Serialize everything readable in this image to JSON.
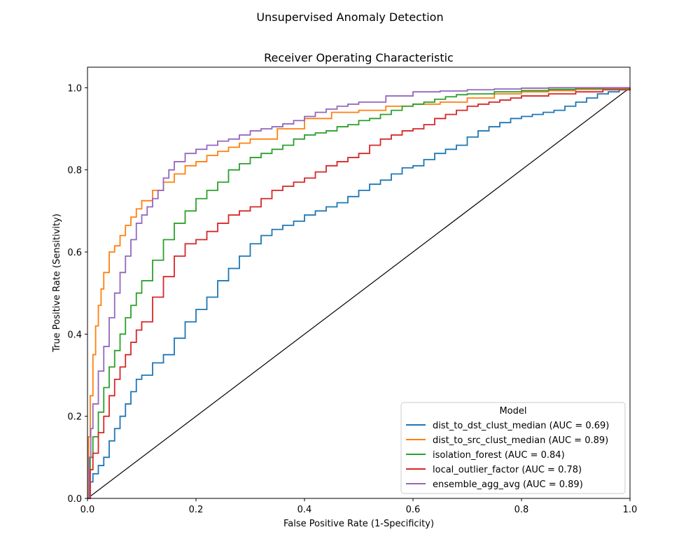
{
  "figure": {
    "suptitle": "Unsupervised Anomaly Detection"
  },
  "chart_data": {
    "type": "line",
    "title": "Receiver Operating Characteristic",
    "xlabel": "False Positive Rate (1-Specificity)",
    "ylabel": "True Positive Rate (Sensitivity)",
    "xlim": [
      0.0,
      1.0
    ],
    "ylim": [
      0.0,
      1.05
    ],
    "xticks": [
      "0.0",
      "0.2",
      "0.4",
      "0.6",
      "0.8",
      "1.0"
    ],
    "yticks": [
      "0.0",
      "0.2",
      "0.4",
      "0.6",
      "0.8",
      "1.0"
    ],
    "grid": false,
    "legend": {
      "title": "Model",
      "placement": "lower-right"
    },
    "reference_line": {
      "x": [
        0,
        1
      ],
      "y": [
        0,
        1
      ],
      "color": "#000000"
    },
    "series": [
      {
        "name": "dist_to_dst_clust_median (AUC = 0.69)",
        "color": "#1f77b4",
        "x": [
          0,
          0.005,
          0.01,
          0.02,
          0.03,
          0.04,
          0.05,
          0.06,
          0.07,
          0.08,
          0.09,
          0.1,
          0.12,
          0.14,
          0.16,
          0.18,
          0.2,
          0.22,
          0.24,
          0.26,
          0.28,
          0.3,
          0.32,
          0.34,
          0.36,
          0.38,
          0.4,
          0.42,
          0.44,
          0.46,
          0.48,
          0.5,
          0.52,
          0.54,
          0.56,
          0.58,
          0.6,
          0.62,
          0.64,
          0.66,
          0.68,
          0.7,
          0.72,
          0.74,
          0.76,
          0.78,
          0.8,
          0.82,
          0.84,
          0.86,
          0.88,
          0.9,
          0.92,
          0.94,
          0.96,
          0.98,
          1.0
        ],
        "y": [
          0.0,
          0.04,
          0.06,
          0.08,
          0.1,
          0.14,
          0.17,
          0.2,
          0.23,
          0.26,
          0.29,
          0.3,
          0.33,
          0.35,
          0.39,
          0.43,
          0.46,
          0.49,
          0.53,
          0.56,
          0.59,
          0.62,
          0.64,
          0.655,
          0.665,
          0.675,
          0.69,
          0.7,
          0.71,
          0.72,
          0.735,
          0.75,
          0.765,
          0.775,
          0.79,
          0.805,
          0.81,
          0.825,
          0.84,
          0.85,
          0.86,
          0.88,
          0.895,
          0.905,
          0.915,
          0.925,
          0.93,
          0.935,
          0.94,
          0.945,
          0.955,
          0.965,
          0.975,
          0.985,
          0.99,
          0.995,
          1.0
        ]
      },
      {
        "name": "dist_to_src_clust_median (AUC = 0.89)",
        "color": "#ff7f0e",
        "x": [
          0,
          0.002,
          0.005,
          0.01,
          0.015,
          0.02,
          0.025,
          0.03,
          0.04,
          0.05,
          0.06,
          0.07,
          0.08,
          0.09,
          0.1,
          0.12,
          0.14,
          0.16,
          0.18,
          0.2,
          0.22,
          0.24,
          0.26,
          0.28,
          0.3,
          0.35,
          0.4,
          0.45,
          0.5,
          0.55,
          0.6,
          0.65,
          0.7,
          0.75,
          0.8,
          0.85,
          0.9,
          0.95,
          1.0
        ],
        "y": [
          0.0,
          0.15,
          0.25,
          0.35,
          0.42,
          0.47,
          0.51,
          0.55,
          0.6,
          0.615,
          0.64,
          0.665,
          0.685,
          0.705,
          0.725,
          0.75,
          0.77,
          0.79,
          0.81,
          0.82,
          0.835,
          0.845,
          0.855,
          0.865,
          0.875,
          0.9,
          0.925,
          0.94,
          0.945,
          0.955,
          0.96,
          0.965,
          0.975,
          0.985,
          0.99,
          0.993,
          0.996,
          0.998,
          1.0
        ]
      },
      {
        "name": "isolation_forest (AUC = 0.84)",
        "color": "#2ca02c",
        "x": [
          0,
          0.005,
          0.01,
          0.02,
          0.03,
          0.04,
          0.05,
          0.06,
          0.07,
          0.08,
          0.09,
          0.1,
          0.12,
          0.14,
          0.16,
          0.18,
          0.2,
          0.22,
          0.24,
          0.26,
          0.28,
          0.3,
          0.32,
          0.34,
          0.36,
          0.38,
          0.4,
          0.42,
          0.44,
          0.46,
          0.48,
          0.5,
          0.52,
          0.54,
          0.56,
          0.58,
          0.6,
          0.62,
          0.64,
          0.66,
          0.68,
          0.7,
          0.75,
          0.8,
          0.85,
          0.9,
          0.95,
          1.0
        ],
        "y": [
          0.0,
          0.1,
          0.15,
          0.21,
          0.27,
          0.32,
          0.36,
          0.4,
          0.44,
          0.47,
          0.5,
          0.53,
          0.58,
          0.63,
          0.67,
          0.7,
          0.73,
          0.75,
          0.77,
          0.8,
          0.815,
          0.83,
          0.84,
          0.85,
          0.86,
          0.875,
          0.885,
          0.89,
          0.895,
          0.905,
          0.91,
          0.92,
          0.925,
          0.935,
          0.945,
          0.955,
          0.96,
          0.965,
          0.972,
          0.978,
          0.983,
          0.985,
          0.99,
          0.993,
          0.996,
          0.998,
          0.999,
          1.0
        ]
      },
      {
        "name": "local_outlier_factor (AUC = 0.78)",
        "color": "#d62728",
        "x": [
          0,
          0.005,
          0.01,
          0.02,
          0.03,
          0.04,
          0.05,
          0.06,
          0.07,
          0.08,
          0.09,
          0.1,
          0.12,
          0.14,
          0.16,
          0.18,
          0.2,
          0.22,
          0.24,
          0.26,
          0.28,
          0.3,
          0.32,
          0.34,
          0.36,
          0.38,
          0.4,
          0.42,
          0.44,
          0.46,
          0.48,
          0.5,
          0.52,
          0.54,
          0.56,
          0.58,
          0.6,
          0.62,
          0.64,
          0.66,
          0.68,
          0.7,
          0.72,
          0.74,
          0.76,
          0.78,
          0.8,
          0.85,
          0.9,
          0.95,
          1.0
        ],
        "y": [
          0.0,
          0.07,
          0.11,
          0.16,
          0.2,
          0.25,
          0.29,
          0.32,
          0.35,
          0.38,
          0.41,
          0.43,
          0.49,
          0.54,
          0.59,
          0.62,
          0.63,
          0.65,
          0.67,
          0.69,
          0.7,
          0.71,
          0.73,
          0.75,
          0.76,
          0.77,
          0.78,
          0.795,
          0.81,
          0.82,
          0.83,
          0.84,
          0.86,
          0.875,
          0.885,
          0.895,
          0.9,
          0.91,
          0.925,
          0.935,
          0.945,
          0.955,
          0.96,
          0.965,
          0.97,
          0.975,
          0.98,
          0.985,
          0.99,
          0.995,
          1.0
        ]
      },
      {
        "name": "ensemble_agg_avg (AUC = 0.89)",
        "color": "#9467bd",
        "x": [
          0,
          0.003,
          0.006,
          0.01,
          0.02,
          0.03,
          0.04,
          0.05,
          0.06,
          0.07,
          0.08,
          0.09,
          0.1,
          0.11,
          0.12,
          0.13,
          0.14,
          0.15,
          0.16,
          0.18,
          0.2,
          0.22,
          0.24,
          0.26,
          0.28,
          0.3,
          0.32,
          0.34,
          0.36,
          0.38,
          0.4,
          0.42,
          0.44,
          0.46,
          0.48,
          0.5,
          0.55,
          0.6,
          0.65,
          0.7,
          0.75,
          0.8,
          0.85,
          0.9,
          0.95,
          1.0
        ],
        "y": [
          0.0,
          0.1,
          0.17,
          0.23,
          0.31,
          0.37,
          0.44,
          0.5,
          0.55,
          0.59,
          0.63,
          0.67,
          0.69,
          0.71,
          0.73,
          0.75,
          0.78,
          0.8,
          0.82,
          0.84,
          0.85,
          0.86,
          0.87,
          0.875,
          0.885,
          0.895,
          0.9,
          0.905,
          0.912,
          0.92,
          0.93,
          0.94,
          0.948,
          0.955,
          0.96,
          0.965,
          0.98,
          0.99,
          0.992,
          0.995,
          0.997,
          0.999,
          1.0,
          1.0,
          1.0,
          1.0
        ]
      }
    ]
  }
}
